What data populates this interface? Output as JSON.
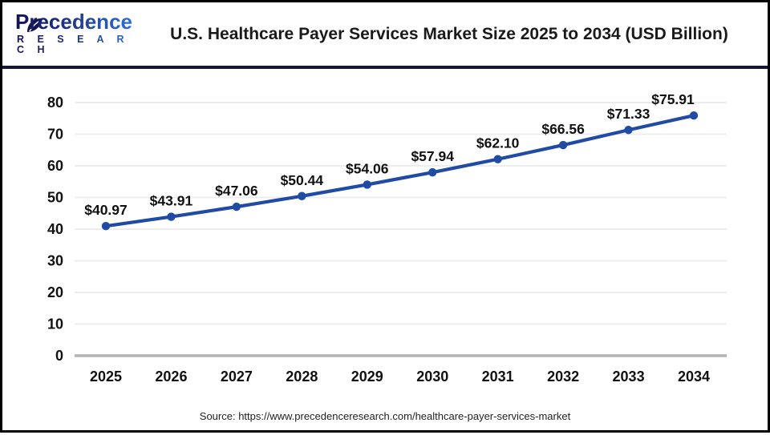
{
  "header": {
    "logo": {
      "brand": "Precedence",
      "sub": "R E S E A R C H"
    },
    "title": "U.S. Healthcare Payer Services Market Size 2025 to 2034 (USD Billion)"
  },
  "footer": {
    "source": "Source: https://www.precedenceresearch.com/healthcare-payer-services-market"
  },
  "colors": {
    "line": "#1f4ba5",
    "marker": "#1f4ba5",
    "grid": "#ededed",
    "zero_axis": "#b3b3b3",
    "axis_label": "#111111",
    "data_label": "#111111",
    "header_divider": "#131736",
    "logo_navy": "#131253",
    "logo_blue": "#2f6fd0"
  },
  "chart_data": {
    "type": "line",
    "title": "U.S. Healthcare Payer Services Market Size 2025 to 2034 (USD Billion)",
    "categories": [
      "2025",
      "2026",
      "2027",
      "2028",
      "2029",
      "2030",
      "2031",
      "2032",
      "2033",
      "2034"
    ],
    "series": [
      {
        "name": "U.S. Healthcare Payer Services Market Size (USD Billion)",
        "values": [
          40.97,
          43.91,
          47.06,
          50.44,
          54.06,
          57.94,
          62.1,
          66.56,
          71.33,
          75.91
        ]
      }
    ],
    "data_labels": [
      "$40.97",
      "$43.91",
      "$47.06",
      "$50.44",
      "$54.06",
      "$57.94",
      "$62.10",
      "$66.56",
      "$71.33",
      "$75.91"
    ],
    "xlabel": "",
    "ylabel": "",
    "ylim": [
      0,
      80
    ],
    "ytick_step": 10,
    "yticks": [
      "0",
      "10",
      "20",
      "30",
      "40",
      "50",
      "60",
      "70",
      "80"
    ],
    "grid": true,
    "legend": "none"
  }
}
